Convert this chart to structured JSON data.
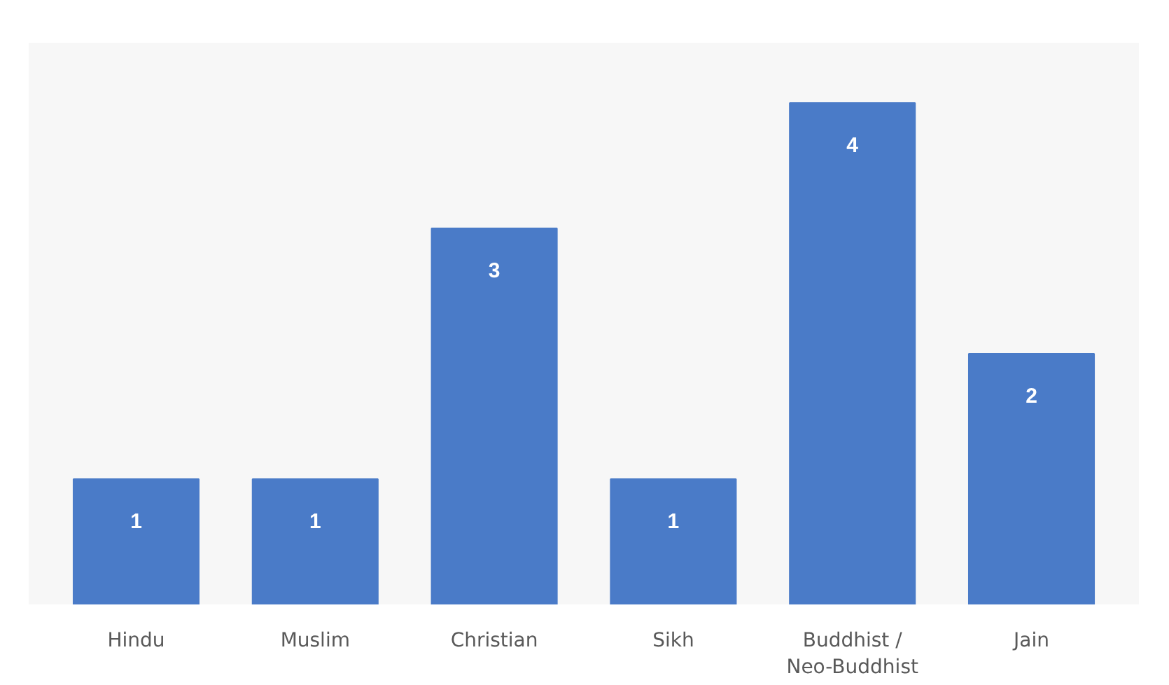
{
  "chart_data": {
    "type": "bar",
    "categories": [
      "Hindu",
      "Muslim",
      "Christian",
      "Sikh",
      "Buddhist /\nNeo-Buddhist",
      "Jain"
    ],
    "values": [
      1,
      1,
      3,
      1,
      4,
      2
    ],
    "color": "#4a7bc8",
    "data_labels": true
  }
}
